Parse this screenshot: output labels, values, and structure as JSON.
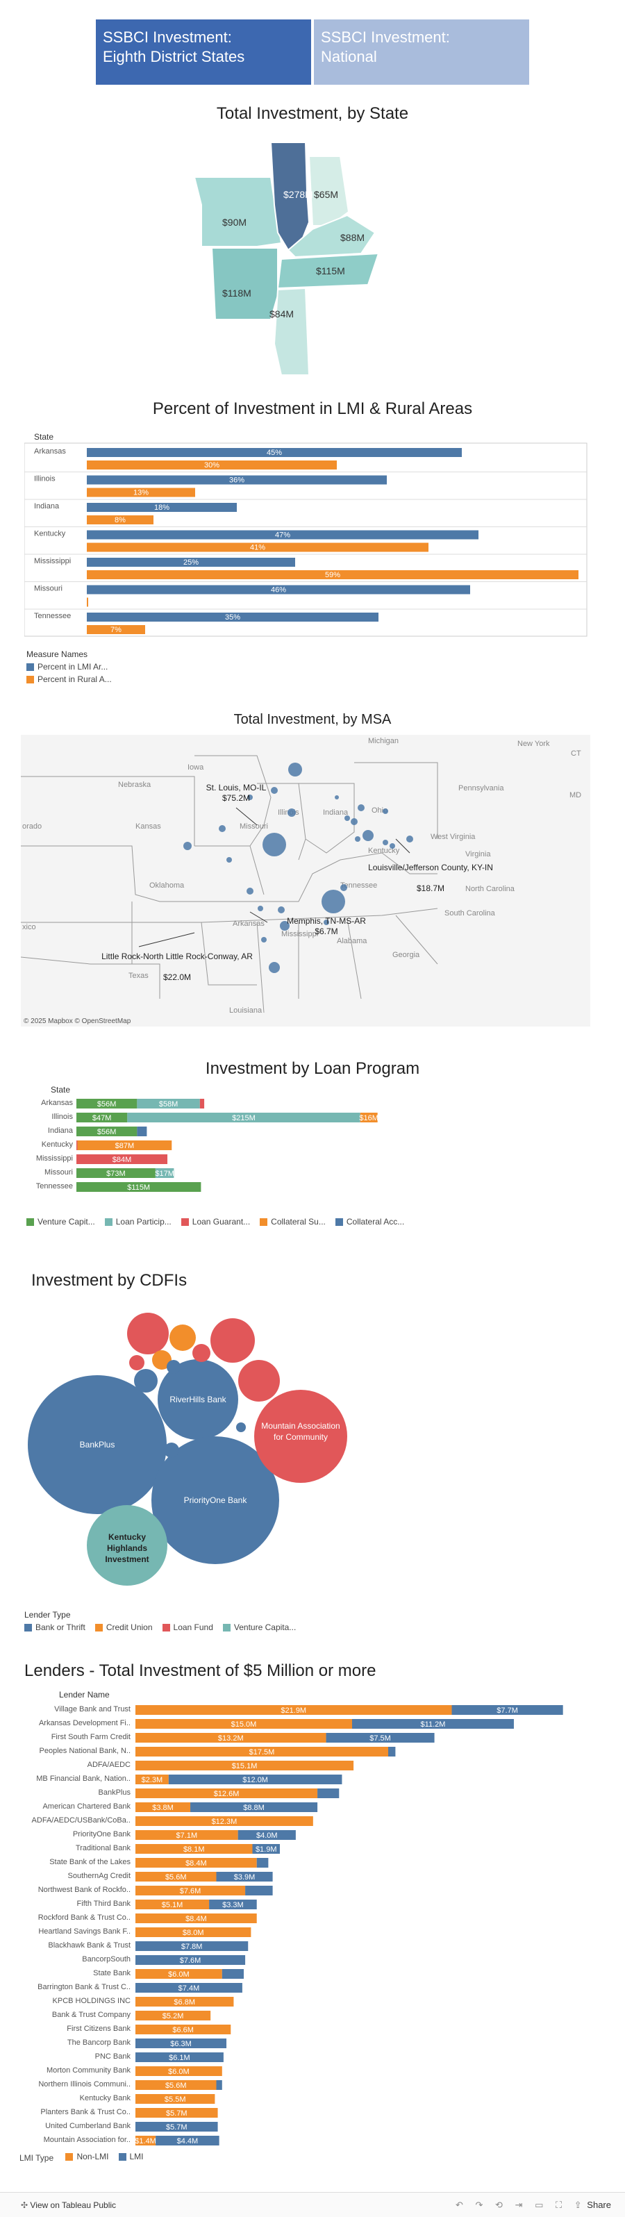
{
  "tabs": [
    {
      "line1": "SSBCI Investment:",
      "line2": "Eighth District States"
    },
    {
      "line1": "SSBCI Investment:",
      "line2": "National"
    }
  ],
  "state_map": {
    "title": "Total Investment, by State",
    "labels": [
      {
        "state": "Illinois",
        "value": "$278M"
      },
      {
        "state": "Indiana",
        "value": "$65M"
      },
      {
        "state": "Missouri",
        "value": "$90M"
      },
      {
        "state": "Kentucky",
        "value": "$88M"
      },
      {
        "state": "Tennessee",
        "value": "$115M"
      },
      {
        "state": "Arkansas",
        "value": "$118M"
      },
      {
        "state": "Mississippi",
        "value": "$84M"
      }
    ]
  },
  "lmi_chart": {
    "title": "Percent of Investment in LMI & Rural Areas",
    "row_header": "State",
    "legend_title": "Measure Names",
    "legend": [
      "Percent in LMI Ar...",
      "Percent in Rural A..."
    ],
    "colors": {
      "lmi": "#4e79a7",
      "rural": "#f28e2b"
    },
    "chart_data": {
      "type": "bar",
      "categories": [
        "Arkansas",
        "Illinois",
        "Indiana",
        "Kentucky",
        "Mississippi",
        "Missouri",
        "Tennessee"
      ],
      "series": [
        {
          "name": "Percent in LMI Ar...",
          "values": [
            45,
            36,
            18,
            47,
            25,
            46,
            35
          ]
        },
        {
          "name": "Percent in Rural A...",
          "values": [
            30,
            13,
            8,
            41,
            59,
            0,
            7
          ]
        }
      ],
      "labels_lmi": [
        "45%",
        "36%",
        "18%",
        "47%",
        "25%",
        "46%",
        "35%"
      ],
      "labels_rural": [
        "30%",
        "13%",
        "8%",
        "41%",
        "59%",
        "",
        "7%"
      ],
      "xlim": [
        0,
        60
      ]
    }
  },
  "msa_map": {
    "title": "Total Investment, by MSA",
    "state_names": [
      "Michigan",
      "New York",
      "Iowa",
      "Nebraska",
      "Illinois",
      "Indiana",
      "Ohio",
      "Pennsylvania",
      "Missouri",
      "Kansas",
      "West Virginia",
      "Virginia",
      "Kentucky",
      "Oklahoma",
      "Tennessee",
      "North Carolina",
      "Arkansas",
      "South Carolina",
      "Mississippi",
      "Alabama",
      "Georgia",
      "Texas",
      "Louisiana",
      "orado",
      "xico",
      "CT",
      "MD"
    ],
    "callouts": [
      {
        "name": "St. Louis, MO-IL",
        "value": "$75.2M"
      },
      {
        "name": "Louisville/Jefferson County, KY-IN",
        "value": "$18.7M"
      },
      {
        "name": "Memphis, TN-MS-AR",
        "value": "$6.7M"
      },
      {
        "name": "Little Rock-North Little Rock-Conway, AR",
        "value": "$22.0M"
      }
    ],
    "attribution": "© 2025 Mapbox  © OpenStreetMap"
  },
  "loan_chart": {
    "title": "Investment by Loan Program",
    "row_header": "State",
    "legend": [
      {
        "name": "Venture Capit...",
        "color": "#59a14f"
      },
      {
        "name": "Loan Particip...",
        "color": "#76b7b2"
      },
      {
        "name": "Loan Guarant...",
        "color": "#e15759"
      },
      {
        "name": "Collateral Su...",
        "color": "#f28e2b"
      },
      {
        "name": "Collateral Acc...",
        "color": "#4e79a7"
      }
    ],
    "chart_data": {
      "type": "bar",
      "stacked": true,
      "categories": [
        "Arkansas",
        "Illinois",
        "Indiana",
        "Kentucky",
        "Mississippi",
        "Missouri",
        "Tennessee"
      ],
      "series": [
        {
          "name": "Venture Capit...",
          "values": [
            56,
            47,
            56,
            0,
            0,
            73,
            115
          ]
        },
        {
          "name": "Loan Particip...",
          "values": [
            58,
            215,
            0,
            0,
            0,
            17,
            0
          ]
        },
        {
          "name": "Loan Guarant...",
          "values": [
            4,
            0,
            0,
            1,
            84,
            0,
            0
          ]
        },
        {
          "name": "Collateral Su...",
          "values": [
            0,
            16,
            0,
            87,
            0,
            0,
            0
          ]
        },
        {
          "name": "Collateral Acc...",
          "values": [
            0,
            0,
            9,
            0,
            0,
            0,
            0
          ]
        }
      ],
      "labels": [
        [
          "$56M",
          "$58M",
          "",
          "",
          ""
        ],
        [
          "$47M",
          "$215M",
          "",
          "$16M",
          ""
        ],
        [
          "$56M",
          "",
          "",
          "",
          ""
        ],
        [
          "",
          "",
          "",
          "$87M",
          ""
        ],
        [
          "",
          "",
          "$84M",
          "",
          ""
        ],
        [
          "$73M",
          "$17M",
          "",
          "",
          ""
        ],
        [
          "$115M",
          "",
          "",
          "",
          ""
        ]
      ]
    }
  },
  "cdfi_chart": {
    "title": "Investment by CDFIs",
    "legend_title": "Lender Type",
    "legend": [
      {
        "name": "Bank or Thrift",
        "color": "#4e79a7"
      },
      {
        "name": "Credit Union",
        "color": "#f28e2b"
      },
      {
        "name": "Loan Fund",
        "color": "#e15759"
      },
      {
        "name": "Venture Capita...",
        "color": "#76b7b2"
      }
    ],
    "bubble_labels": [
      "BankPlus",
      "RiverHills Bank",
      "PriorityOne Bank",
      "Mountain Association for Community",
      "Kentucky Highlands Investment"
    ]
  },
  "lenders_chart": {
    "title": "Lenders - Total Investment of $5 Million or more",
    "row_header": "Lender Name",
    "legend_title": "LMI Type",
    "legend": [
      {
        "name": "Non-LMI",
        "color": "#f28e2b"
      },
      {
        "name": "LMI",
        "color": "#4e79a7"
      }
    ],
    "chart_data": {
      "type": "bar",
      "stacked": true,
      "categories": [
        "Village Bank and Trust",
        "Arkansas Development Fi..",
        "First South Farm Credit",
        "Peoples National Bank, N..",
        "ADFA/AEDC",
        "MB Financial Bank, Nation..",
        "BankPlus",
        "American Chartered Bank",
        "ADFA/AEDC/USBank/CoBa..",
        "PriorityOne Bank",
        "Traditional Bank",
        "State Bank of the Lakes",
        "SouthernAg Credit",
        "Northwest Bank of Rockfo..",
        "Fifth Third Bank",
        "Rockford Bank & Trust Co..",
        "Heartland Savings Bank F..",
        "Blackhawk Bank & Trust",
        "BancorpSouth",
        "State Bank",
        "Barrington Bank & Trust C..",
        "KPCB HOLDINGS INC",
        "Bank & Trust Company",
        "First Citizens Bank",
        "The Bancorp Bank",
        "PNC Bank",
        "Morton Community Bank",
        "Northern Illinois Communi..",
        "Kentucky Bank",
        "Planters Bank & Trust Co..",
        "United Cumberland Bank",
        "Mountain Association for.."
      ],
      "series": [
        {
          "name": "Non-LMI",
          "values": [
            21.9,
            15.0,
            13.2,
            17.5,
            15.1,
            2.3,
            12.6,
            3.8,
            12.3,
            7.1,
            8.1,
            8.4,
            5.6,
            7.6,
            5.1,
            8.4,
            8.0,
            0,
            0,
            6.0,
            0,
            6.8,
            5.2,
            6.6,
            0,
            0,
            6.0,
            5.6,
            5.5,
            5.7,
            0,
            1.4
          ],
          "labels": [
            "$21.9M",
            "$15.0M",
            "$13.2M",
            "$17.5M",
            "$15.1M",
            "$2.3M",
            "$12.6M",
            "$3.8M",
            "$12.3M",
            "$7.1M",
            "$8.1M",
            "$8.4M",
            "$5.6M",
            "$7.6M",
            "$5.1M",
            "$8.4M",
            "$8.0M",
            "",
            "",
            "$6.0M",
            "",
            "$6.8M",
            "$5.2M",
            "$6.6M",
            "",
            "",
            "$6.0M",
            "$5.6M",
            "$5.5M",
            "$5.7M",
            "",
            "$1.4M"
          ]
        },
        {
          "name": "LMI",
          "values": [
            7.7,
            11.2,
            7.5,
            0.5,
            0,
            12.0,
            1.5,
            8.8,
            0,
            4.0,
            1.9,
            0.8,
            3.9,
            1.9,
            3.3,
            0,
            0,
            7.8,
            7.6,
            1.5,
            7.4,
            0,
            0,
            0,
            6.3,
            6.1,
            0,
            0.4,
            0,
            0,
            5.7,
            4.4
          ],
          "labels": [
            "$7.7M",
            "$11.2M",
            "$7.5M",
            "",
            "",
            "$12.0M",
            "",
            "$8.8M",
            "",
            "$4.0M",
            "$1.9M",
            "",
            "$3.9M",
            "",
            "$3.3M",
            "",
            "",
            "$7.8M",
            "$7.6M",
            "",
            "$7.4M",
            "",
            "",
            "",
            "$6.3M",
            "$6.1M",
            "",
            "",
            "",
            "",
            "$5.7M",
            "$4.4M"
          ]
        }
      ]
    }
  },
  "footer": {
    "tableau_link": "View on Tableau Public",
    "share": "Share"
  }
}
